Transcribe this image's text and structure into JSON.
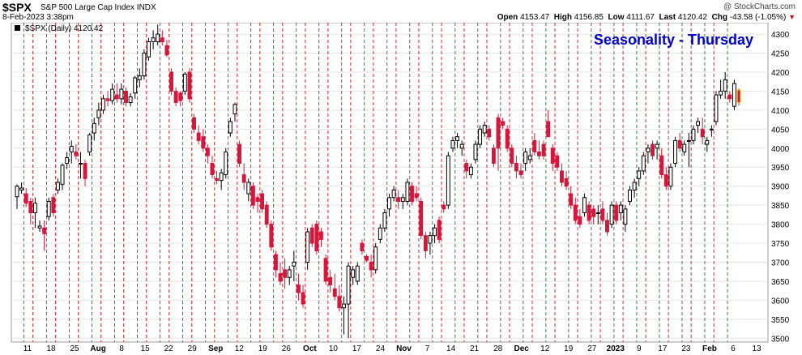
{
  "header": {
    "symbol": "$SPX",
    "name": "S&P 500 Large Cap Index",
    "exchange": "INDX",
    "brand": "@ StockCharts.com",
    "date": "8-Feb-2023 3:38pm",
    "open_label": "Open",
    "open": "4153.47",
    "high_label": "High",
    "high": "4156.85",
    "low_label": "Low",
    "low": "4111.67",
    "last_label": "Last",
    "last": "4120.42",
    "chg_label": "Chg",
    "chg": "-43.58 (-1.05%)"
  },
  "legend": "$SPX (Daily) 4120.42",
  "colors": {
    "up": "#000000",
    "down": "#d6163c",
    "green_line": "#2e8b2e",
    "red_line": "#d62728",
    "title": "#0000cc"
  },
  "chart_data": {
    "type": "candlestick",
    "title": "Seasonality - Thursday",
    "ylim": [
      3490,
      4330
    ],
    "y_ticks": [
      3500,
      3550,
      3600,
      3650,
      3700,
      3750,
      3800,
      3850,
      3900,
      3950,
      4000,
      4050,
      4100,
      4150,
      4200,
      4250,
      4300
    ],
    "x_tick_labels": [
      "11",
      "18",
      "25",
      "Aug",
      "8",
      "15",
      "22",
      "29",
      "Sep",
      "12",
      "19",
      "26",
      "Oct",
      "10",
      "17",
      "24",
      "Nov",
      "7",
      "14",
      "21",
      "28",
      "Dec",
      "12",
      "19",
      "27",
      "2023",
      "9",
      "17",
      "23",
      "Feb",
      "6",
      "13"
    ],
    "grid": true,
    "ohlc": [
      [
        3872,
        3905,
        3840,
        3900
      ],
      [
        3890,
        3910,
        3880,
        3895
      ],
      [
        3880,
        3895,
        3845,
        3855
      ],
      [
        3860,
        3870,
        3800,
        3830
      ],
      [
        3830,
        3870,
        3790,
        3855
      ],
      [
        3790,
        3810,
        3780,
        3795
      ],
      [
        3790,
        3810,
        3730,
        3775
      ],
      [
        3820,
        3870,
        3810,
        3860
      ],
      [
        3870,
        3880,
        3820,
        3830
      ],
      [
        3890,
        3920,
        3880,
        3910
      ],
      [
        3905,
        3960,
        3890,
        3955
      ],
      [
        3960,
        3990,
        3945,
        3975
      ],
      [
        3990,
        4020,
        3960,
        4005
      ],
      [
        3990,
        4010,
        3970,
        3980
      ],
      [
        3960,
        3990,
        3920,
        3960
      ],
      [
        3960,
        3970,
        3900,
        3920
      ],
      [
        3990,
        4040,
        3980,
        4035
      ],
      [
        4040,
        4080,
        4020,
        4065
      ],
      [
        4080,
        4120,
        4060,
        4100
      ],
      [
        4100,
        4140,
        4090,
        4130
      ],
      [
        4130,
        4150,
        4110,
        4125
      ],
      [
        4125,
        4170,
        4115,
        4155
      ],
      [
        4140,
        4170,
        4120,
        4130
      ],
      [
        4130,
        4170,
        4115,
        4155
      ],
      [
        4150,
        4160,
        4110,
        4120
      ],
      [
        4120,
        4145,
        4110,
        4135
      ],
      [
        4145,
        4190,
        4130,
        4185
      ],
      [
        4180,
        4210,
        4160,
        4190
      ],
      [
        4190,
        4260,
        4180,
        4250
      ],
      [
        4240,
        4290,
        4230,
        4280
      ],
      [
        4280,
        4310,
        4260,
        4290
      ],
      [
        4280,
        4325,
        4270,
        4300
      ],
      [
        4290,
        4310,
        4270,
        4280
      ],
      [
        4270,
        4285,
        4240,
        4245
      ],
      [
        4200,
        4210,
        4140,
        4150
      ],
      [
        4150,
        4160,
        4110,
        4120
      ],
      [
        4145,
        4150,
        4110,
        4125
      ],
      [
        4150,
        4200,
        4140,
        4195
      ],
      [
        4200,
        4210,
        4120,
        4130
      ],
      [
        4080,
        4090,
        4040,
        4050
      ],
      [
        4040,
        4060,
        4010,
        4020
      ],
      [
        4030,
        4050,
        3990,
        4000
      ],
      [
        4000,
        4010,
        3960,
        3980
      ],
      [
        3960,
        3980,
        3920,
        3930
      ],
      [
        3920,
        3940,
        3905,
        3915
      ],
      [
        3915,
        3945,
        3890,
        3935
      ],
      [
        3930,
        4000,
        3920,
        3990
      ],
      [
        4040,
        4080,
        4030,
        4070
      ],
      [
        4090,
        4120,
        4070,
        4115
      ],
      [
        4010,
        4020,
        3950,
        3960
      ],
      [
        3930,
        3960,
        3890,
        3910
      ],
      [
        3880,
        3920,
        3860,
        3910
      ],
      [
        3900,
        3910,
        3840,
        3850
      ],
      [
        3870,
        3880,
        3830,
        3860
      ],
      [
        3880,
        3890,
        3830,
        3840
      ],
      [
        3850,
        3860,
        3790,
        3800
      ],
      [
        3800,
        3810,
        3730,
        3740
      ],
      [
        3720,
        3730,
        3660,
        3680
      ],
      [
        3670,
        3700,
        3640,
        3650
      ],
      [
        3680,
        3710,
        3630,
        3660
      ],
      [
        3660,
        3690,
        3640,
        3680
      ],
      [
        3690,
        3730,
        3650,
        3700
      ],
      [
        3640,
        3670,
        3600,
        3620
      ],
      [
        3620,
        3640,
        3580,
        3590
      ],
      [
        3700,
        3790,
        3680,
        3780
      ],
      [
        3790,
        3800,
        3740,
        3750
      ],
      [
        3800,
        3810,
        3720,
        3730
      ],
      [
        3780,
        3790,
        3740,
        3760
      ],
      [
        3710,
        3720,
        3640,
        3650
      ],
      [
        3660,
        3680,
        3620,
        3640
      ],
      [
        3630,
        3670,
        3600,
        3610
      ],
      [
        3610,
        3640,
        3570,
        3580
      ],
      [
        3580,
        3610,
        3510,
        3590
      ],
      [
        3590,
        3700,
        3500,
        3690
      ],
      [
        3660,
        3690,
        3640,
        3680
      ],
      [
        3650,
        3700,
        3640,
        3690
      ],
      [
        3750,
        3760,
        3720,
        3730
      ],
      [
        3715,
        3720,
        3700,
        3705
      ],
      [
        3700,
        3720,
        3660,
        3680
      ],
      [
        3680,
        3750,
        3670,
        3740
      ],
      [
        3760,
        3800,
        3750,
        3790
      ],
      [
        3790,
        3840,
        3780,
        3830
      ],
      [
        3840,
        3880,
        3820,
        3870
      ],
      [
        3870,
        3900,
        3860,
        3890
      ],
      [
        3870,
        3890,
        3840,
        3860
      ],
      [
        3860,
        3880,
        3840,
        3870
      ],
      [
        3860,
        3920,
        3850,
        3910
      ],
      [
        3900,
        3910,
        3850,
        3860
      ],
      [
        3880,
        3900,
        3860,
        3870
      ],
      [
        3860,
        3870,
        3760,
        3770
      ],
      [
        3770,
        3780,
        3710,
        3730
      ],
      [
        3750,
        3780,
        3720,
        3770
      ],
      [
        3770,
        3800,
        3750,
        3790
      ],
      [
        3810,
        3820,
        3750,
        3760
      ],
      [
        3850,
        3860,
        3830,
        3840
      ],
      [
        3850,
        3990,
        3840,
        3980
      ],
      [
        4000,
        4030,
        3990,
        4020
      ],
      [
        4020,
        4040,
        4000,
        4030
      ],
      [
        4000,
        4020,
        3980,
        4010
      ],
      [
        3960,
        3970,
        3920,
        3940
      ],
      [
        3930,
        3960,
        3920,
        3950
      ],
      [
        3970,
        4020,
        3960,
        4010
      ],
      [
        4010,
        4060,
        4000,
        4050
      ],
      [
        4040,
        4070,
        4030,
        4060
      ],
      [
        4050,
        4060,
        4020,
        4030
      ],
      [
        4000,
        4010,
        3950,
        3960
      ],
      [
        4080,
        4090,
        3940,
        4000
      ],
      [
        4070,
        4080,
        4050,
        4060
      ],
      [
        4050,
        4060,
        3990,
        4000
      ],
      [
        4000,
        4010,
        3950,
        3960
      ],
      [
        3960,
        3980,
        3920,
        3940
      ],
      [
        3940,
        3960,
        3920,
        3930
      ],
      [
        3960,
        4000,
        3940,
        3990
      ],
      [
        3970,
        4000,
        3960,
        3980
      ],
      [
        4020,
        4040,
        3980,
        3990
      ],
      [
        3990,
        4020,
        3970,
        3980
      ],
      [
        4010,
        4020,
        3970,
        3980
      ],
      [
        4070,
        4100,
        4030,
        4030
      ],
      [
        4000,
        4010,
        3940,
        3960
      ],
      [
        3980,
        3990,
        3940,
        3950
      ],
      [
        3940,
        3960,
        3900,
        3910
      ],
      [
        3920,
        3940,
        3890,
        3900
      ],
      [
        3880,
        3900,
        3840,
        3850
      ],
      [
        3850,
        3870,
        3800,
        3810
      ],
      [
        3820,
        3840,
        3790,
        3800
      ],
      [
        3830,
        3880,
        3820,
        3870
      ],
      [
        3850,
        3860,
        3800,
        3810
      ],
      [
        3840,
        3850,
        3800,
        3820
      ],
      [
        3830,
        3850,
        3800,
        3830
      ],
      [
        3840,
        3860,
        3800,
        3810
      ],
      [
        3810,
        3830,
        3770,
        3780
      ],
      [
        3800,
        3860,
        3790,
        3850
      ],
      [
        3850,
        3860,
        3800,
        3810
      ],
      [
        3830,
        3860,
        3810,
        3850
      ],
      [
        3800,
        3850,
        3780,
        3840
      ],
      [
        3860,
        3900,
        3850,
        3890
      ],
      [
        3890,
        3920,
        3870,
        3910
      ],
      [
        3920,
        3950,
        3900,
        3940
      ],
      [
        3940,
        3990,
        3930,
        3980
      ],
      [
        3990,
        4010,
        3960,
        4000
      ],
      [
        4010,
        4020,
        3970,
        3980
      ],
      [
        4000,
        4020,
        3970,
        4010
      ],
      [
        3980,
        4000,
        3920,
        3930
      ],
      [
        3930,
        3950,
        3890,
        3900
      ],
      [
        3900,
        3960,
        3890,
        3950
      ],
      [
        3960,
        4030,
        3950,
        4020
      ],
      [
        4020,
        4040,
        3990,
        4000
      ],
      [
        3990,
        4020,
        3980,
        4010
      ],
      [
        4020,
        4040,
        3950,
        4020
      ],
      [
        4020,
        4060,
        4010,
        4050
      ],
      [
        4060,
        4080,
        4040,
        4070
      ],
      [
        4050,
        4080,
        4010,
        4030
      ],
      [
        4010,
        4030,
        3990,
        4020
      ],
      [
        4050,
        4060,
        4030,
        4050
      ],
      [
        4070,
        4150,
        4060,
        4140
      ],
      [
        4140,
        4180,
        4130,
        4150
      ],
      [
        4150,
        4200,
        4130,
        4180
      ],
      [
        4140,
        4150,
        4120,
        4130
      ],
      [
        4110,
        4180,
        4100,
        4170
      ],
      [
        4153,
        4157,
        4112,
        4120
      ]
    ],
    "highlight_last": true,
    "vlines": [
      {
        "c": "g",
        "i": 1
      },
      {
        "c": "r",
        "i": 3
      },
      {
        "c": "g",
        "i": 6
      },
      {
        "c": "r",
        "i": 8
      },
      {
        "c": "g",
        "i": 11
      },
      {
        "c": "r",
        "i": 13
      },
      {
        "c": "g",
        "i": 16
      },
      {
        "c": "r",
        "i": 18
      },
      {
        "c": "g",
        "i": 21
      },
      {
        "c": "r",
        "i": 23
      },
      {
        "c": "g",
        "i": 26
      },
      {
        "c": "r",
        "i": 28
      },
      {
        "c": "g",
        "i": 31
      },
      {
        "c": "r",
        "i": 33
      },
      {
        "c": "g",
        "i": 36
      },
      {
        "c": "r",
        "i": 38
      },
      {
        "c": "g",
        "i": 41
      },
      {
        "c": "r",
        "i": 43
      },
      {
        "c": "g",
        "i": 46
      },
      {
        "c": "r",
        "i": 48
      },
      {
        "c": "g",
        "i": 51
      },
      {
        "c": "r",
        "i": 53
      },
      {
        "c": "g",
        "i": 56
      },
      {
        "c": "r",
        "i": 58
      },
      {
        "c": "g",
        "i": 61
      },
      {
        "c": "r",
        "i": 63
      },
      {
        "c": "g",
        "i": 66
      },
      {
        "c": "r",
        "i": 68
      },
      {
        "c": "g",
        "i": 71
      },
      {
        "c": "r",
        "i": 73
      },
      {
        "c": "g",
        "i": 76
      },
      {
        "c": "r",
        "i": 78
      },
      {
        "c": "g",
        "i": 81
      },
      {
        "c": "r",
        "i": 83
      },
      {
        "c": "g",
        "i": 86
      },
      {
        "c": "r",
        "i": 88
      },
      {
        "c": "g",
        "i": 91
      },
      {
        "c": "r",
        "i": 93
      },
      {
        "c": "g",
        "i": 96
      },
      {
        "c": "r",
        "i": 98
      },
      {
        "c": "g",
        "i": 101
      },
      {
        "c": "r",
        "i": 103
      },
      {
        "c": "g",
        "i": 106
      },
      {
        "c": "r",
        "i": 108
      },
      {
        "c": "g",
        "i": 111
      },
      {
        "c": "r",
        "i": 113
      },
      {
        "c": "g",
        "i": 116
      },
      {
        "c": "r",
        "i": 118
      },
      {
        "c": "g",
        "i": 121
      },
      {
        "c": "r",
        "i": 123
      },
      {
        "c": "g",
        "i": 126
      },
      {
        "c": "r",
        "i": 128
      },
      {
        "c": "g",
        "i": 131
      },
      {
        "c": "r",
        "i": 133
      },
      {
        "c": "g",
        "i": 136
      },
      {
        "c": "r",
        "i": 138
      },
      {
        "c": "g",
        "i": 141
      },
      {
        "c": "r",
        "i": 143
      },
      {
        "c": "g",
        "i": 146
      },
      {
        "c": "r",
        "i": 148
      },
      {
        "c": "g",
        "i": 151
      },
      {
        "c": "r",
        "i": 153
      },
      {
        "c": "g",
        "i": 156
      }
    ]
  }
}
